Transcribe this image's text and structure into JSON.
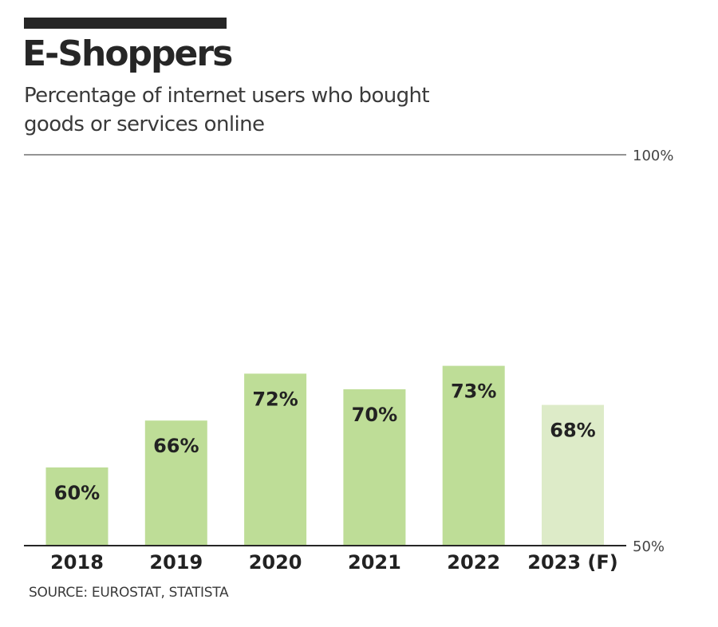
{
  "header": {
    "title": "E-Shoppers",
    "subtitle": "Percentage of internet users who bought goods or services online"
  },
  "footer": {
    "source": "SOURCE: EUROSTAT, STATISTA"
  },
  "colors": {
    "bar": "#bedd97",
    "bar_forecast": "#ddebc8",
    "axis": "#262626",
    "text": "#222222",
    "top_bar": "#262626"
  },
  "chart_data": {
    "type": "bar",
    "title": "E-Shoppers",
    "subtitle": "Percentage of internet users who bought goods or services online",
    "categories": [
      "2018",
      "2019",
      "2020",
      "2021",
      "2022",
      "2023 (F)"
    ],
    "values": [
      60,
      66,
      72,
      70,
      73,
      68
    ],
    "data_labels": [
      "60%",
      "66%",
      "72%",
      "70%",
      "73%",
      "68%"
    ],
    "forecast": [
      false,
      false,
      false,
      false,
      false,
      true
    ],
    "ylim": [
      50,
      100
    ],
    "yticks": [
      50,
      100
    ],
    "ytick_labels": [
      "50%",
      "100%"
    ],
    "xlabel": "",
    "ylabel": "",
    "grid": false,
    "legend": "none"
  }
}
